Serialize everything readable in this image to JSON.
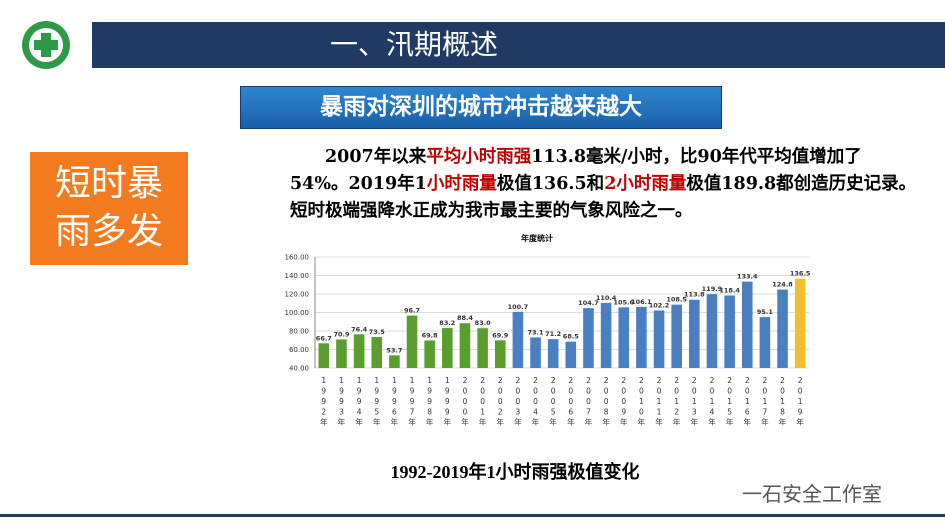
{
  "header": {
    "title": "一、汛期概述"
  },
  "banner": "暴雨对深圳的城市冲击越来越大",
  "badge": [
    "短时暴",
    "雨多发"
  ],
  "paragraph": [
    {
      "text": "2007年以来",
      "highlight": false
    },
    {
      "text": "平均小时雨强",
      "highlight": true
    },
    {
      "text": "113.8毫米/小时，比90年代平均值增加了54%。2019年1",
      "highlight": false
    },
    {
      "text": "小时雨量",
      "highlight": true
    },
    {
      "text": "极值136.5和",
      "highlight": false
    },
    {
      "text": "2小时雨量",
      "highlight": true
    },
    {
      "text": "极值189.8都创造历史记录。短时极端强降水正成为我市最主要的气象风险之一。",
      "highlight": false
    }
  ],
  "caption": "1992-2019年1小时雨强极值变化",
  "watermark": "一石安全工作室",
  "chart_data": {
    "type": "bar",
    "title": "年度统计",
    "categories": [
      "1992年",
      "1993年",
      "1994年",
      "1995年",
      "1996年",
      "1997年",
      "1998年",
      "1999年",
      "2000年",
      "2001年",
      "2002年",
      "2003年",
      "2004年",
      "2005年",
      "2006年",
      "2007年",
      "2008年",
      "2009年",
      "2010年",
      "2011年",
      "2012年",
      "2013年",
      "2014年",
      "2015年",
      "2016年",
      "2017年",
      "2018年",
      "2019年"
    ],
    "values": [
      66.7,
      70.9,
      76.4,
      73.5,
      53.7,
      96.7,
      69.8,
      83.2,
      88.4,
      83.0,
      69.9,
      100.7,
      73.1,
      71.2,
      68.5,
      104.7,
      110.4,
      105.6,
      106.1,
      102.2,
      108.5,
      113.8,
      119.9,
      118.4,
      133.4,
      95.1,
      124.8,
      136.5
    ],
    "value_labels": [
      "66.7",
      "70.9",
      "76.4",
      "73.5",
      "53.7",
      "96.7",
      "69.8",
      "83.2",
      "88.4",
      "83.0",
      "69.9",
      "100.7",
      "73.1",
      "71.2",
      "68.5",
      "104.7",
      "110.4",
      "105.6",
      "106.1",
      "102.2",
      "108.5",
      "113.8",
      "119.9",
      "118.4",
      "133.4",
      "95.1",
      "124.8",
      "136.5"
    ],
    "colors": [
      "#5a9e2f",
      "#5a9e2f",
      "#5a9e2f",
      "#5a9e2f",
      "#5a9e2f",
      "#5a9e2f",
      "#5a9e2f",
      "#5a9e2f",
      "#5a9e2f",
      "#5a9e2f",
      "#5a9e2f",
      "#4a7fc1",
      "#4a7fc1",
      "#4a7fc1",
      "#4a7fc1",
      "#4a7fc1",
      "#4a7fc1",
      "#4a7fc1",
      "#4a7fc1",
      "#4a7fc1",
      "#4a7fc1",
      "#4a7fc1",
      "#4a7fc1",
      "#4a7fc1",
      "#4a7fc1",
      "#4a7fc1",
      "#4a7fc1",
      "#f0c030"
    ],
    "ylim": [
      40,
      160
    ],
    "yticks": [
      {
        "value": 40,
        "label": "40.00"
      },
      {
        "value": 60,
        "label": "60.00"
      },
      {
        "value": 80,
        "label": "80.00"
      },
      {
        "value": 100,
        "label": "100.00"
      },
      {
        "value": 120,
        "label": "120.00"
      },
      {
        "value": 140,
        "label": "140.00"
      },
      {
        "value": 160,
        "label": "160.00"
      }
    ],
    "grid": true
  }
}
